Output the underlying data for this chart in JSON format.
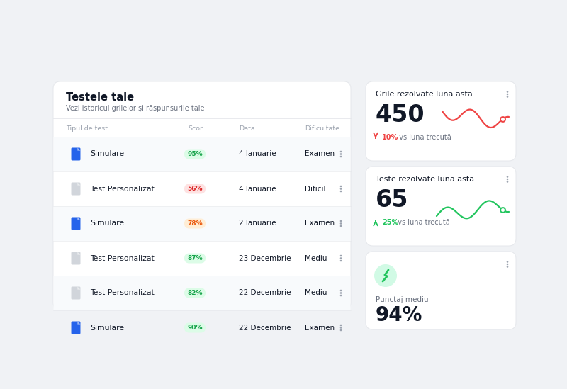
{
  "bg_color": "#f0f2f5",
  "card_bg": "#ffffff",
  "title_main": "Testele tale",
  "subtitle_main": "Vezi istoricul grilelor și răspunsurile tale",
  "col_headers": [
    "Tipul de test",
    "Scor",
    "Data",
    "Dificultate"
  ],
  "rows": [
    {
      "icon_color": "#2563eb",
      "name": "Simulare",
      "score": "95%",
      "score_color": "#16a34a",
      "score_bg": "#dcfce7",
      "date": "4 Ianuarie",
      "difficulty": "Examen"
    },
    {
      "icon_color": "#d1d5db",
      "name": "Test Personalizat",
      "score": "56%",
      "score_color": "#dc2626",
      "score_bg": "#fee2e2",
      "date": "4 Ianuarie",
      "difficulty": "Dificil"
    },
    {
      "icon_color": "#2563eb",
      "name": "Simulare",
      "score": "78%",
      "score_color": "#ea580c",
      "score_bg": "#ffedd5",
      "date": "2 Ianuarie",
      "difficulty": "Examen"
    },
    {
      "icon_color": "#d1d5db",
      "name": "Test Personalizat",
      "score": "87%",
      "score_color": "#16a34a",
      "score_bg": "#dcfce7",
      "date": "23 Decembrie",
      "difficulty": "Mediu"
    },
    {
      "icon_color": "#d1d5db",
      "name": "Test Personalizat",
      "score": "82%",
      "score_color": "#16a34a",
      "score_bg": "#dcfce7",
      "date": "22 Decembrie",
      "difficulty": "Mediu"
    },
    {
      "icon_color": "#2563eb",
      "name": "Simulare",
      "score": "90%",
      "score_color": "#16a34a",
      "score_bg": "#dcfce7",
      "date": "22 Decembrie",
      "difficulty": "Examen"
    }
  ],
  "card1_title": "Grile rezolvate luna asta",
  "card1_value": "450",
  "card1_pct": "10%",
  "card1_vs": "vs luna trecută",
  "card1_line_color": "#ef4444",
  "card2_title": "Teste rezolvate luna asta",
  "card2_value": "65",
  "card2_pct": "25%",
  "card2_vs": "vs luna trecută",
  "card2_line_color": "#22c55e",
  "card3_title": "Punctaj mediu",
  "card3_value": "94%",
  "card3_icon_bg": "#d1fae5",
  "card3_icon_color": "#22c55e",
  "text_dark": "#111827",
  "text_medium": "#6b7280",
  "text_light": "#9ca3af",
  "border_color": "#e5e7eb"
}
